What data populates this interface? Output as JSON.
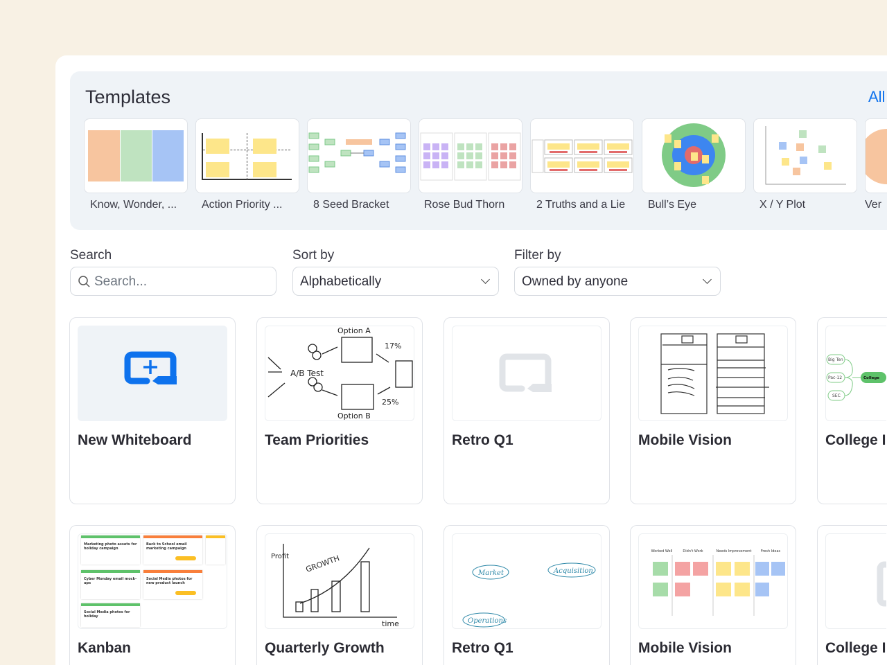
{
  "templates": {
    "title": "Templates",
    "all_link": "All",
    "items": [
      {
        "label": "Know, Wonder, ..."
      },
      {
        "label": "Action Priority ..."
      },
      {
        "label": "8 Seed Bracket"
      },
      {
        "label": "Rose Bud Thorn"
      },
      {
        "label": "2 Truths and a Lie"
      },
      {
        "label": "Bull’s Eye"
      },
      {
        "label": "X / Y Plot"
      },
      {
        "label": "Ver"
      }
    ]
  },
  "filters": {
    "search_label": "Search",
    "search_placeholder": "Search...",
    "sort_label": "Sort by",
    "sort_value": "Alphabetically",
    "filter_label": "Filter by",
    "filter_value": "Owned by anyone"
  },
  "boards": [
    {
      "title": "New Whiteboard"
    },
    {
      "title": "Team Priorities"
    },
    {
      "title": "Retro Q1"
    },
    {
      "title": "Mobile Vision"
    },
    {
      "title": "College I"
    },
    {
      "title": "Kanban"
    },
    {
      "title": "Quarterly Growth"
    },
    {
      "title": "Retro Q1"
    },
    {
      "title": "Mobile Vision"
    },
    {
      "title": "College I"
    }
  ],
  "thumb_text": {
    "option_a": "Option A",
    "option_b": "Option B",
    "ab_test": "A/B Test",
    "pct_a": "17%",
    "pct_b": "25%",
    "college_nodes": [
      "Big Ten",
      "Pac-12",
      "SEC"
    ],
    "college_root": "College",
    "growth": "GROWTH",
    "profit": "Profit",
    "time": "time",
    "retro_cols": [
      "Worked Well",
      "Didn't Work",
      "Needs Improvement",
      "Fresh Ideas"
    ],
    "mind_nodes": [
      "Market",
      "Acquisition",
      "Operations"
    ],
    "kanban_cards": [
      "Marketing photo assets for holiday campaign",
      "Back to School email marketing campaign",
      "Cyber Monday email mock-ups",
      "Social Media photos for new product launch",
      "Social Media photos for holiday"
    ]
  },
  "colors": {
    "accent": "#0e72ed",
    "background": "#f8f1e4",
    "templates_bg": "#eff3f7"
  }
}
